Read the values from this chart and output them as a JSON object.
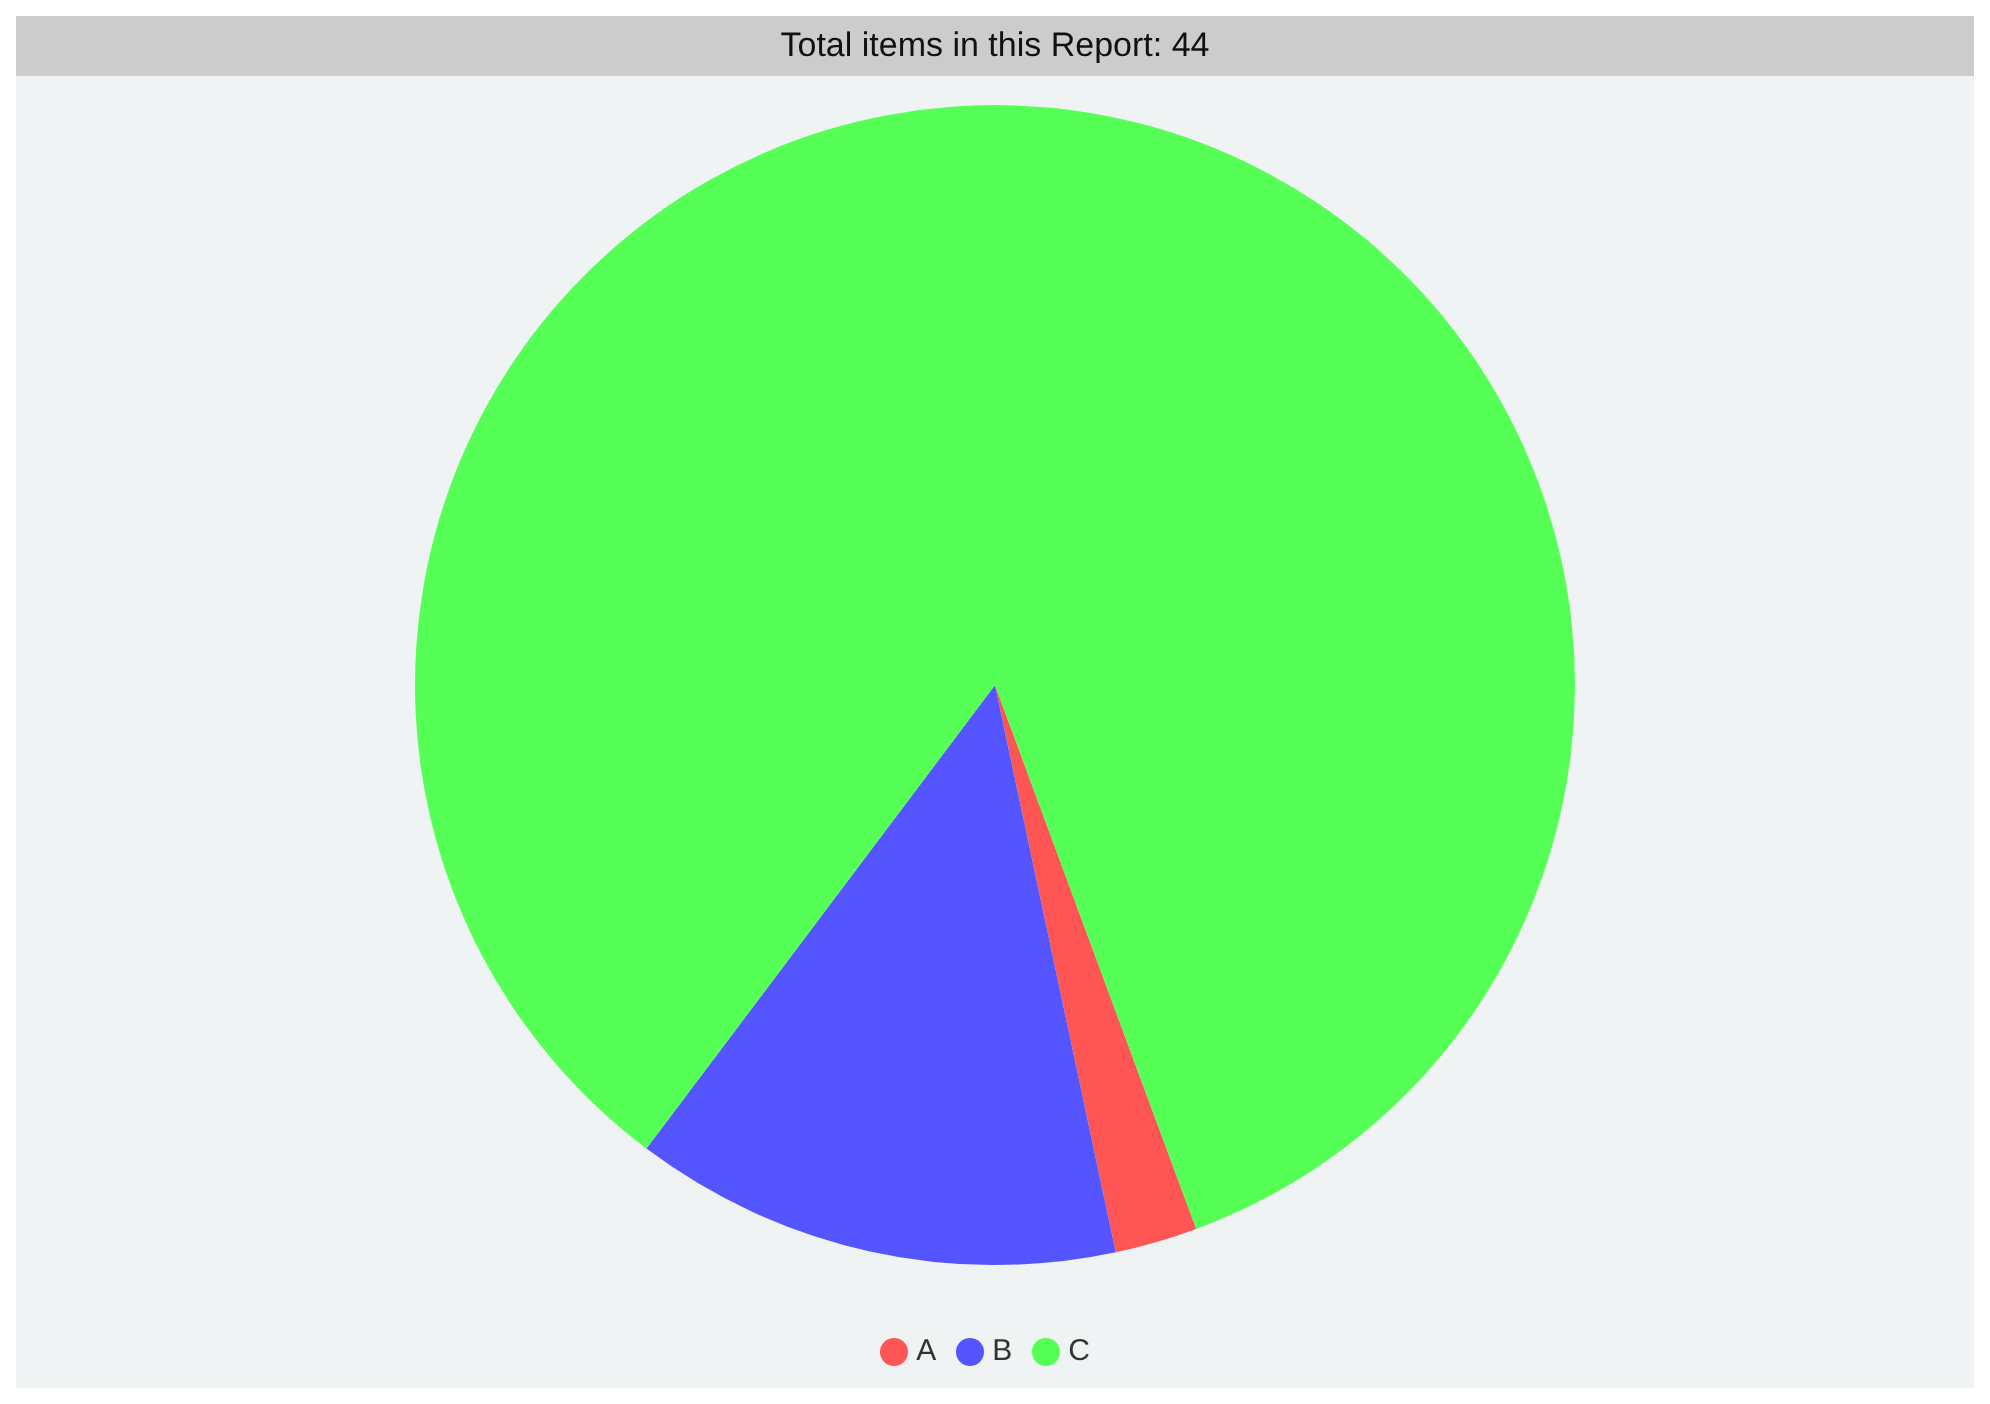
{
  "chart_data": {
    "type": "pie",
    "title": "Total items in this Report: 44",
    "categories": [
      "A",
      "B",
      "C"
    ],
    "values": [
      2.3,
      13.6,
      84.1
    ],
    "colors": [
      "#ff5555",
      "#5555ff",
      "#55ff55"
    ],
    "legend": "bottom"
  }
}
